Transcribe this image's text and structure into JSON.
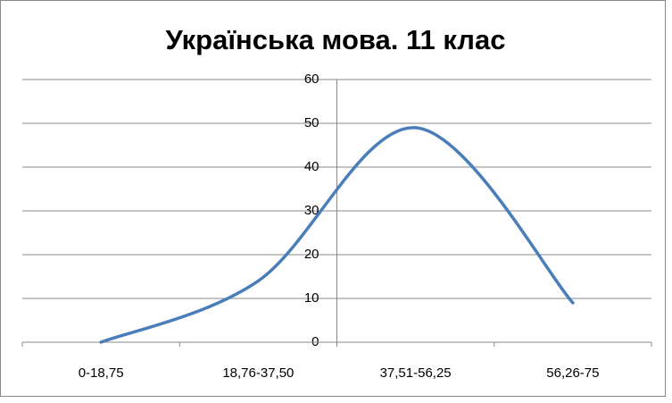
{
  "chart_data": {
    "type": "line",
    "title": "Українська мова. 11 клас",
    "categories": [
      "0-18,75",
      "18,76-37,50",
      "37,51-56,25",
      "56,26-75"
    ],
    "series": [
      {
        "name": "Українська мова. 11 клас",
        "color": "#4a7ebb",
        "values": [
          0,
          14,
          49,
          9
        ]
      }
    ],
    "ylim": [
      0,
      60
    ],
    "yticks": [
      0,
      10,
      20,
      30,
      40,
      50,
      60
    ],
    "grid": true,
    "smooth": true,
    "legend": false
  }
}
